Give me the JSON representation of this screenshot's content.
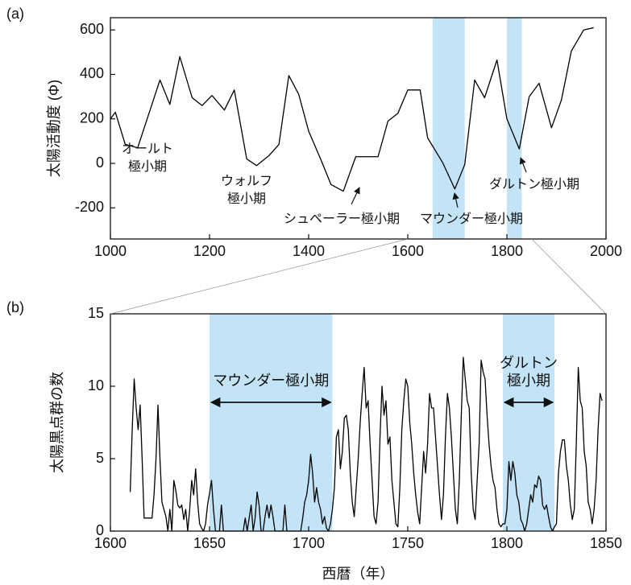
{
  "chart_data": [
    {
      "type": "line",
      "panel_label": "(a)",
      "ylabel": "太陽活動度 (Φ)",
      "color": "#000000",
      "span_color": "#c2e4f6",
      "xlim": [
        1000,
        2000
      ],
      "xticks": [
        1000,
        1200,
        1400,
        1600,
        1800,
        2000
      ],
      "ylim": [
        -340,
        655
      ],
      "yticks": [
        -200,
        0,
        200,
        400,
        600
      ],
      "x": [
        1000,
        1010,
        1030,
        1055,
        1100,
        1120,
        1140,
        1165,
        1185,
        1205,
        1230,
        1250,
        1275,
        1295,
        1320,
        1340,
        1360,
        1380,
        1400,
        1425,
        1445,
        1470,
        1495,
        1515,
        1540,
        1560,
        1580,
        1600,
        1625,
        1640,
        1670,
        1695,
        1715,
        1735,
        1755,
        1780,
        1800,
        1825,
        1845,
        1865,
        1890,
        1910,
        1930,
        1955,
        1975
      ],
      "values": [
        200,
        230,
        85,
        70,
        375,
        265,
        480,
        295,
        260,
        305,
        240,
        330,
        20,
        -10,
        35,
        85,
        395,
        310,
        145,
        15,
        -95,
        -125,
        30,
        30,
        30,
        190,
        225,
        330,
        330,
        115,
        5,
        -115,
        -5,
        375,
        295,
        465,
        200,
        65,
        300,
        360,
        160,
        285,
        505,
        600,
        610
      ],
      "spans": [
        {
          "range": [
            1650,
            1715
          ]
        },
        {
          "range": [
            1800,
            1830
          ]
        }
      ],
      "annotations": [
        {
          "text": [
            "オールト",
            "極小期"
          ]
        },
        {
          "text": [
            "ウォルフ",
            "極小期"
          ]
        },
        {
          "text": [
            "シュペーラー極小期"
          ]
        },
        {
          "text": [
            "マウンダー極小期"
          ]
        },
        {
          "text": [
            "ダルトン極小期"
          ]
        }
      ]
    },
    {
      "type": "line",
      "panel_label": "(b)",
      "ylabel": "太陽黒点群の数",
      "xlabel": "西暦（年）",
      "color": "#000000",
      "span_color": "#c2e4f6",
      "xlim": [
        1600,
        1850
      ],
      "xticks": [
        1600,
        1650,
        1700,
        1750,
        1800,
        1850
      ],
      "ylim": [
        0,
        15
      ],
      "yticks": [
        0,
        5,
        10,
        15
      ],
      "x": [
        1610,
        1611,
        1612,
        1613,
        1614,
        1615,
        1616,
        1617,
        1618,
        1619,
        1620,
        1621,
        1622,
        1623,
        1624,
        1625,
        1626,
        1627,
        1628,
        1629,
        1630,
        1631,
        1632,
        1633,
        1634,
        1635,
        1636,
        1637,
        1638,
        1639,
        1640,
        1641,
        1642,
        1643,
        1644,
        1645,
        1646,
        1647,
        1648,
        1649,
        1650,
        1651,
        1652,
        1653,
        1654,
        1655,
        1656,
        1657,
        1658,
        1659,
        1660,
        1661,
        1662,
        1663,
        1664,
        1665,
        1666,
        1667,
        1668,
        1669,
        1670,
        1671,
        1672,
        1673,
        1674,
        1675,
        1676,
        1677,
        1678,
        1679,
        1680,
        1681,
        1682,
        1683,
        1684,
        1685,
        1686,
        1687,
        1688,
        1689,
        1690,
        1691,
        1692,
        1693,
        1694,
        1695,
        1696,
        1697,
        1698,
        1699,
        1700,
        1701,
        1702,
        1703,
        1704,
        1705,
        1706,
        1707,
        1708,
        1709,
        1710,
        1711,
        1712,
        1713,
        1714,
        1715,
        1716,
        1717,
        1718,
        1719,
        1720,
        1721,
        1722,
        1723,
        1724,
        1725,
        1726,
        1727,
        1728,
        1729,
        1730,
        1731,
        1732,
        1733,
        1734,
        1735,
        1736,
        1737,
        1738,
        1739,
        1740,
        1741,
        1742,
        1743,
        1744,
        1745,
        1746,
        1747,
        1748,
        1749,
        1750,
        1751,
        1752,
        1753,
        1754,
        1755,
        1756,
        1757,
        1758,
        1759,
        1760,
        1761,
        1762,
        1763,
        1764,
        1765,
        1766,
        1767,
        1768,
        1769,
        1770,
        1771,
        1772,
        1773,
        1774,
        1775,
        1776,
        1777,
        1778,
        1779,
        1780,
        1781,
        1782,
        1783,
        1784,
        1785,
        1786,
        1787,
        1788,
        1789,
        1790,
        1791,
        1792,
        1793,
        1794,
        1795,
        1796,
        1797,
        1798,
        1799,
        1800,
        1801,
        1802,
        1803,
        1804,
        1805,
        1806,
        1807,
        1808,
        1809,
        1810,
        1811,
        1812,
        1813,
        1814,
        1815,
        1816,
        1817,
        1818,
        1819,
        1820,
        1821,
        1822,
        1823,
        1824,
        1825,
        1826,
        1827,
        1828,
        1829,
        1830,
        1831,
        1832,
        1833,
        1834,
        1835,
        1836,
        1837,
        1838,
        1839,
        1840,
        1841,
        1842,
        1843,
        1844,
        1845,
        1846,
        1847,
        1848
      ],
      "values": [
        2.7,
        7,
        10.5,
        8.5,
        7,
        8.7,
        5,
        0.9,
        0.9,
        0.9,
        0.9,
        0.9,
        2.5,
        5,
        8.7,
        5,
        2,
        1.5,
        1,
        0,
        1.5,
        0,
        3.5,
        2.8,
        1.8,
        1.6,
        1.8,
        0.8,
        1.5,
        0,
        1.5,
        3.5,
        2.5,
        4.3,
        2,
        0.5,
        0.2,
        0,
        0.5,
        1.8,
        2.6,
        3.5,
        1.5,
        0,
        0,
        0,
        1.8,
        0,
        0,
        0,
        0,
        0,
        0,
        0,
        0,
        0,
        0,
        0,
        0.9,
        0,
        0.9,
        1.8,
        0,
        0.9,
        2.7,
        1.8,
        0,
        0,
        1,
        1.8,
        0.9,
        1.8,
        1,
        0,
        0,
        0,
        0,
        0,
        1.8,
        0,
        0,
        0,
        0,
        0,
        0,
        0,
        0,
        0.9,
        2,
        2.5,
        3.5,
        5.3,
        4,
        2,
        3,
        2,
        1.5,
        0.5,
        1,
        0.2,
        0,
        0.5,
        1.5,
        3,
        6.5,
        7,
        4.3,
        5.5,
        7.8,
        8,
        7,
        4,
        2,
        1,
        3,
        5,
        7.5,
        9.5,
        11.3,
        8.5,
        9,
        6,
        3.5,
        1,
        0.5,
        2,
        6.5,
        10,
        8,
        9,
        6,
        6.5,
        3.5,
        2,
        0.5,
        0.3,
        3,
        7,
        9,
        10.5,
        10,
        7.5,
        6,
        4,
        2.5,
        1.3,
        0.5,
        3,
        5.5,
        4,
        6,
        9.5,
        8.5,
        8.5,
        6.5,
        4.5,
        2.5,
        0.8,
        2.5,
        6.5,
        9.5,
        8.5,
        6.5,
        4,
        1.5,
        0.5,
        3.5,
        8,
        12,
        10.5,
        9,
        8.5,
        4,
        1.5,
        0.8,
        3.5,
        6,
        11.8,
        11,
        10.5,
        8,
        6,
        4.5,
        3.5,
        3,
        1.5,
        0.5,
        0.3,
        0.5,
        0.5,
        1.5,
        4.8,
        3.5,
        4.8,
        4,
        2.5,
        2,
        0.8,
        0.5,
        0,
        0.5,
        1.5,
        2.5,
        2,
        3.2,
        3,
        3.8,
        3.5,
        1.8,
        1.5,
        1.8,
        1,
        0.3,
        0,
        0.3,
        0.5,
        4,
        5.5,
        6.3,
        6.3,
        4.5,
        3.5,
        1.8,
        0.8,
        1.5,
        6,
        11.3,
        9,
        8.5,
        5.5,
        4.5,
        2,
        1.5,
        0.5,
        1.5,
        3.5,
        7,
        9.5,
        9
      ],
      "spans": [
        {
          "range": [
            1650,
            1712
          ],
          "label": [
            "マウンダー極小期"
          ]
        },
        {
          "range": [
            1798,
            1824
          ],
          "label": [
            "ダルトン",
            "極小期"
          ]
        }
      ]
    }
  ]
}
